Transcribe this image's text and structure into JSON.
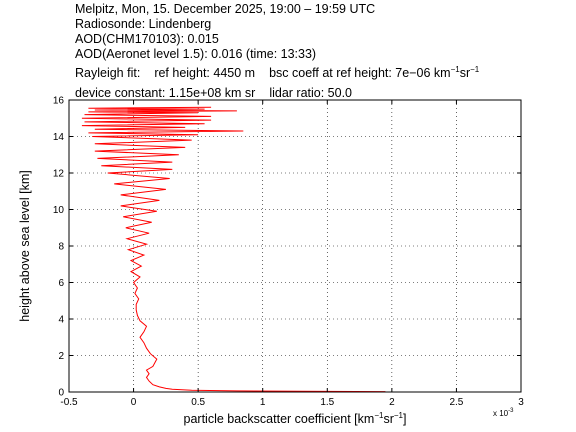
{
  "header": {
    "line1": "Melpitz, Mon, 15. December 2025, 19:00 – 19:59 UTC",
    "line2": "Radiosonde: Lindenberg",
    "line3": "AOD(CHM170103): 0.015",
    "line4": "AOD(Aeronet level 1.5): 0.016   (time: 13:33)",
    "rayleigh_label": "Rayleigh fit:",
    "ref_height": "ref height: 4450 m",
    "bsc_coeff_prefix": "bsc coeff at ref height: 7e−06 km",
    "bsc_coeff_mid": "sr",
    "exp_minus1": "−1",
    "device_constant": "device constant: 1.15e+08 km sr",
    "lidar_ratio": "lidar ratio: 50.0"
  },
  "chart_data": {
    "type": "line",
    "xlabel_prefix": "particle backscatter coefficient [km",
    "xlabel_mid": "sr",
    "xlabel_suffix": "]",
    "xlabel_exp": "−1",
    "x_multiplier_label": "x 10",
    "x_multiplier_exp": "-3",
    "ylabel": "height above sea level [km]",
    "xlim": [
      -0.5,
      3
    ],
    "ylim": [
      0,
      16
    ],
    "xticks": [
      -0.5,
      0,
      0.5,
      1,
      1.5,
      2,
      2.5,
      3
    ],
    "xtick_labels": [
      "-0.5",
      "0",
      "0.5",
      "1",
      "1.5",
      "2",
      "2.5",
      "3"
    ],
    "yticks": [
      0,
      2,
      4,
      6,
      8,
      10,
      12,
      14,
      16
    ],
    "ytick_labels": [
      "0",
      "2",
      "4",
      "6",
      "8",
      "10",
      "12",
      "14",
      "16"
    ],
    "grid": true,
    "line_color": "#ff0000",
    "series": [
      {
        "x": [
          1.95,
          1.3,
          0.8,
          0.45,
          0.3,
          0.25,
          0.2,
          0.15,
          0.12,
          0.1,
          0.12,
          0.1,
          0.15,
          0.18,
          0.13,
          0.1,
          0.08,
          0.05,
          0.08,
          0.1,
          0.05,
          0.03,
          0.02,
          0.02,
          0.04,
          0.01,
          0.03,
          0.0,
          0.05,
          -0.02,
          0.06,
          -0.02,
          0.08,
          -0.04,
          0.1,
          -0.05,
          0.12,
          -0.06,
          0.14,
          -0.08,
          0.18,
          -0.1,
          0.2,
          -0.1,
          0.25,
          -0.15,
          0.28,
          -0.2,
          0.3,
          -0.25,
          0.3,
          -0.28,
          0.35,
          -0.3,
          0.4,
          -0.3,
          0.45,
          -0.32,
          0.5,
          -0.35,
          0.85,
          -0.3,
          0.4,
          -0.4,
          0.55,
          -0.38,
          0.6,
          -0.4,
          0.6,
          -0.38,
          0.5,
          -0.35,
          0.8,
          -0.3,
          0.55,
          -0.35,
          0.6
        ],
        "y": [
          0.02,
          0.04,
          0.06,
          0.1,
          0.15,
          0.2,
          0.28,
          0.4,
          0.6,
          0.8,
          1.0,
          1.2,
          1.4,
          1.8,
          2.1,
          2.4,
          2.7,
          3.0,
          3.3,
          3.6,
          3.9,
          4.2,
          4.5,
          4.8,
          5.1,
          5.4,
          5.7,
          6.0,
          6.3,
          6.6,
          6.9,
          7.2,
          7.5,
          7.8,
          8.1,
          8.4,
          8.7,
          9.0,
          9.3,
          9.6,
          9.9,
          10.2,
          10.5,
          10.8,
          11.1,
          11.4,
          11.7,
          12.0,
          12.2,
          12.4,
          12.6,
          12.8,
          13.0,
          13.2,
          13.4,
          13.6,
          13.8,
          14.0,
          14.1,
          14.2,
          14.3,
          14.4,
          14.5,
          14.6,
          14.7,
          14.8,
          14.9,
          15.0,
          15.1,
          15.2,
          15.3,
          15.35,
          15.4,
          15.45,
          15.5,
          15.55,
          15.6
        ]
      }
    ]
  }
}
